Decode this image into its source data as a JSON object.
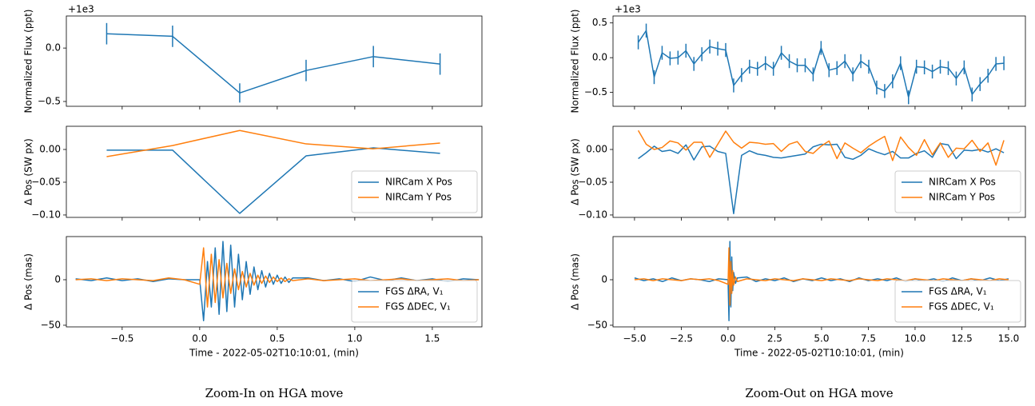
{
  "chart_data": [
    {
      "type": "line",
      "ylabel": "Normalized Flux (ppt)",
      "offset_text": "+1e3",
      "color": "#1f77b4",
      "x": [
        -0.6,
        -0.175,
        0.258,
        0.686,
        1.12,
        1.55
      ],
      "values": [
        0.134,
        0.11,
        -0.42,
        -0.21,
        -0.08,
        -0.15
      ],
      "errors": [
        0.1,
        0.1,
        0.09,
        0.1,
        0.1,
        0.1
      ],
      "xlim": [
        -0.86,
        1.82
      ],
      "ylim": [
        -0.545,
        0.3
      ],
      "yticks": [
        {
          "value": -0.5,
          "label": "−0.5"
        },
        {
          "value": 0,
          "label": "0.0"
        }
      ]
    },
    {
      "type": "line",
      "ylabel": "Δ Pos (SW px)",
      "legend": "lower right",
      "x": [
        -0.6,
        -0.175,
        0.258,
        0.686,
        1.12,
        1.55
      ],
      "series": [
        {
          "name": "NIRCam X Pos",
          "color": "#1f77b4",
          "values": [
            -0.001,
            -0.001,
            -0.0976,
            -0.0098,
            0.0024,
            -0.006
          ]
        },
        {
          "name": "NIRCam Y Pos",
          "color": "#ff7f0e",
          "values": [
            -0.011,
            0.006,
            0.029,
            0.0085,
            0.001,
            0.0098
          ]
        }
      ],
      "xlim": [
        -0.86,
        1.82
      ],
      "ylim": [
        -0.1037,
        0.0354
      ],
      "yticks": [
        {
          "value": -0.1,
          "label": "−0.10"
        },
        {
          "value": -0.05,
          "label": "−0.05"
        },
        {
          "value": 0,
          "label": "0.00"
        }
      ]
    },
    {
      "type": "line",
      "ylabel": "Δ Pos (mas)",
      "xlabel": "Time - 2022-05-02T10:10:01, (min)",
      "legend": "lower right",
      "x": [
        -0.8,
        -0.7,
        -0.6,
        -0.5,
        -0.4,
        -0.3,
        -0.2,
        -0.1,
        0,
        0.025,
        0.05,
        0.075,
        0.1,
        0.125,
        0.15,
        0.175,
        0.2,
        0.225,
        0.25,
        0.275,
        0.3,
        0.325,
        0.35,
        0.375,
        0.4,
        0.425,
        0.45,
        0.475,
        0.5,
        0.525,
        0.55,
        0.575,
        0.6,
        0.7,
        0.8,
        0.9,
        1.0,
        1.1,
        1.2,
        1.3,
        1.4,
        1.5,
        1.6,
        1.7,
        1.8
      ],
      "series": [
        {
          "name": "FGS ΔRA, V₁",
          "color": "#1f77b4",
          "values": [
            1,
            -1,
            2,
            -1,
            1,
            -2,
            1,
            0,
            0,
            -45,
            20,
            -30,
            35,
            -38,
            42,
            -35,
            38,
            -30,
            28,
            -22,
            20,
            -16,
            14,
            -11,
            10,
            -8,
            7,
            -5,
            5,
            -4,
            3,
            -3,
            2,
            2,
            -1,
            1,
            -2,
            3,
            -1,
            2,
            -1,
            1,
            -2,
            1,
            0
          ]
        },
        {
          "name": "FGS ΔDEC, V₁",
          "color": "#ff7f0e",
          "values": [
            0,
            1,
            -1,
            1,
            0,
            -1,
            2,
            0,
            -5,
            35,
            -30,
            28,
            -25,
            22,
            -20,
            18,
            -15,
            12,
            -11,
            9,
            -8,
            7,
            -6,
            5,
            -4,
            4,
            -3,
            3,
            -2,
            2,
            -2,
            1,
            -1,
            1,
            -1,
            0,
            1,
            -1,
            0,
            1,
            -1,
            0,
            1,
            -1,
            0
          ]
        }
      ],
      "xlim": [
        -0.86,
        1.82
      ],
      "ylim": [
        -51.8,
        47.4
      ],
      "xticks": [
        {
          "value": -0.5,
          "label": "−0.5"
        },
        {
          "value": 0,
          "label": "0.0"
        },
        0.5,
        {
          "value": 1,
          "label": "1.0"
        },
        1.5
      ],
      "yticks": [
        {
          "value": -50,
          "label": "−50"
        },
        0
      ]
    },
    {
      "type": "line",
      "ylabel": "Normalized Flux (ppt)",
      "offset_text": "+1e3",
      "color": "#1f77b4",
      "x": [
        -4.8,
        -4.375,
        -3.95,
        -3.525,
        -3.1,
        -2.675,
        -2.25,
        -1.825,
        -1.4,
        -0.975,
        -0.55,
        -0.125,
        0.3,
        0.725,
        1.15,
        1.575,
        2.0,
        2.425,
        2.85,
        3.275,
        3.7,
        4.125,
        4.55,
        4.975,
        5.4,
        5.825,
        6.25,
        6.675,
        7.1,
        7.525,
        7.95,
        8.375,
        8.8,
        9.225,
        9.65,
        10.075,
        10.5,
        10.925,
        11.35,
        11.775,
        12.2,
        12.625,
        13.05,
        13.475,
        13.9,
        14.325,
        14.75
      ],
      "values": [
        0.22,
        0.39,
        -0.28,
        0.07,
        -0.01,
        0.0,
        0.1,
        -0.09,
        0.05,
        0.16,
        0.13,
        0.11,
        -0.4,
        -0.25,
        -0.13,
        -0.16,
        -0.08,
        -0.16,
        0.07,
        -0.05,
        -0.11,
        -0.11,
        -0.24,
        0.14,
        -0.18,
        -0.15,
        -0.05,
        -0.24,
        -0.05,
        -0.13,
        -0.43,
        -0.48,
        -0.34,
        -0.08,
        -0.57,
        -0.13,
        -0.14,
        -0.2,
        -0.13,
        -0.15,
        -0.3,
        -0.14,
        -0.53,
        -0.38,
        -0.26,
        -0.09,
        -0.08
      ],
      "errors": [
        0.1,
        0.1,
        0.1,
        0.1,
        0.1,
        0.1,
        0.1,
        0.1,
        0.1,
        0.1,
        0.1,
        0.1,
        0.1,
        0.1,
        0.1,
        0.1,
        0.1,
        0.1,
        0.1,
        0.1,
        0.1,
        0.1,
        0.1,
        0.1,
        0.1,
        0.1,
        0.1,
        0.1,
        0.1,
        0.1,
        0.1,
        0.1,
        0.1,
        0.1,
        0.1,
        0.1,
        0.1,
        0.1,
        0.1,
        0.1,
        0.1,
        0.1,
        0.1,
        0.1,
        0.1,
        0.1,
        0.1
      ],
      "xlim": [
        -6.15,
        15.9
      ],
      "ylim": [
        -0.7,
        0.6
      ],
      "yticks": [
        {
          "value": -0.5,
          "label": "−0.5"
        },
        {
          "value": 0,
          "label": "0.0"
        },
        0.5
      ]
    },
    {
      "type": "line",
      "ylabel": "Δ Pos (SW px)",
      "legend": "lower right",
      "x": [
        -4.8,
        -4.375,
        -3.95,
        -3.525,
        -3.1,
        -2.675,
        -2.25,
        -1.825,
        -1.4,
        -0.975,
        -0.55,
        -0.125,
        0.3,
        0.725,
        1.15,
        1.575,
        2.0,
        2.425,
        2.85,
        3.275,
        3.7,
        4.125,
        4.55,
        4.975,
        5.4,
        5.825,
        6.25,
        6.675,
        7.1,
        7.525,
        7.95,
        8.375,
        8.8,
        9.225,
        9.65,
        10.075,
        10.5,
        10.925,
        11.35,
        11.775,
        12.2,
        12.625,
        13.05,
        13.475,
        13.9,
        14.325,
        14.75
      ],
      "series": [
        {
          "name": "NIRCam X Pos",
          "color": "#1f77b4",
          "values": [
            -0.014,
            -0.005,
            0.005,
            -0.003,
            -0.001,
            -0.006,
            0.007,
            -0.016,
            0.004,
            0.005,
            -0.003,
            -0.006,
            -0.098,
            -0.009,
            -0.002,
            -0.007,
            -0.009,
            -0.012,
            -0.013,
            -0.011,
            -0.009,
            -0.007,
            0.004,
            0.008,
            0.007,
            0.008,
            -0.012,
            -0.015,
            -0.009,
            0.001,
            -0.004,
            -0.008,
            -0.003,
            -0.013,
            -0.013,
            -0.006,
            -0.002,
            -0.012,
            0.009,
            0.007,
            -0.014,
            -0.001,
            -0.002,
            0.0,
            -0.004,
            0.001,
            -0.005
          ]
        },
        {
          "name": "NIRCam Y Pos",
          "color": "#ff7f0e",
          "values": [
            0.029,
            0.008,
            0.0,
            0.003,
            0.013,
            0.01,
            -0.001,
            0.011,
            0.011,
            -0.012,
            0.008,
            0.028,
            0.011,
            0.002,
            0.011,
            0.01,
            0.008,
            0.009,
            -0.003,
            0.008,
            0.012,
            -0.003,
            -0.006,
            0.005,
            0.013,
            -0.014,
            0.01,
            0.002,
            -0.005,
            0.005,
            0.013,
            0.02,
            -0.017,
            0.019,
            0.003,
            -0.009,
            0.015,
            -0.008,
            0.01,
            -0.012,
            0.002,
            0.001,
            0.014,
            -0.003,
            0.01,
            -0.024,
            0.014
          ]
        }
      ],
      "xlim": [
        -6.15,
        15.9
      ],
      "ylim": [
        -0.1037,
        0.0354
      ],
      "yticks": [
        {
          "value": -0.1,
          "label": "−0.10"
        },
        {
          "value": -0.05,
          "label": "−0.05"
        },
        {
          "value": 0,
          "label": "0.00"
        }
      ]
    },
    {
      "type": "line",
      "ylabel": "Δ Pos (mas)",
      "xlabel": "Time - 2022-05-02T10:10:01, (min)",
      "legend": "lower right",
      "x": [
        -5,
        -4.5,
        -4,
        -3.5,
        -3,
        -2.5,
        -2,
        -1.5,
        -1,
        -0.5,
        0,
        0.05,
        0.1,
        0.15,
        0.2,
        0.25,
        0.3,
        0.4,
        0.5,
        1,
        1.5,
        2,
        2.5,
        3,
        3.5,
        4,
        4.5,
        5,
        5.5,
        6,
        6.5,
        7,
        7.5,
        8,
        8.5,
        9,
        9.5,
        10,
        10.5,
        11,
        11.5,
        12,
        12.5,
        13,
        13.5,
        14,
        14.5,
        15
      ],
      "series": [
        {
          "name": "FGS ΔRA, V₁",
          "color": "#1f77b4",
          "values": [
            2,
            -1,
            1,
            -2,
            2,
            -1,
            1,
            0,
            -2,
            1,
            0,
            -45,
            42,
            -30,
            25,
            -12,
            8,
            -4,
            2,
            3,
            -2,
            1,
            -1,
            2,
            -2,
            1,
            -1,
            2,
            -1,
            1,
            -2,
            2,
            -1,
            1,
            -1,
            2,
            -2,
            1,
            -1,
            1,
            -2,
            2,
            -1,
            1,
            -1,
            2,
            -1,
            1
          ]
        },
        {
          "name": "FGS ΔDEC, V₁",
          "color": "#ff7f0e",
          "values": [
            0,
            1,
            -1,
            1,
            0,
            -1,
            1,
            0,
            1,
            -1,
            -5,
            35,
            -28,
            20,
            -15,
            10,
            -6,
            3,
            -2,
            1,
            0,
            -1,
            1,
            0,
            -1,
            1,
            0,
            -1,
            1,
            0,
            -1,
            1,
            0,
            -1,
            1,
            0,
            -1,
            1,
            0,
            -1,
            1,
            0,
            -1,
            1,
            0,
            -1,
            1,
            0
          ]
        }
      ],
      "xlim": [
        -6.15,
        15.9
      ],
      "ylim": [
        -51.8,
        47.4
      ],
      "xticks": [
        {
          "value": -5,
          "label": "−5.0"
        },
        {
          "value": -2.5,
          "label": "−2.5"
        },
        {
          "value": 0,
          "label": "0.0"
        },
        2.5,
        {
          "value": 5,
          "label": "5.0"
        },
        7.5,
        {
          "value": 10,
          "label": "10.0"
        },
        12.5,
        {
          "value": 15,
          "label": "15.0"
        }
      ],
      "yticks": [
        {
          "value": -50,
          "label": "−50"
        },
        0
      ]
    }
  ],
  "captions": [
    "Zoom-In on HGA move",
    "Zoom-Out on HGA move"
  ]
}
